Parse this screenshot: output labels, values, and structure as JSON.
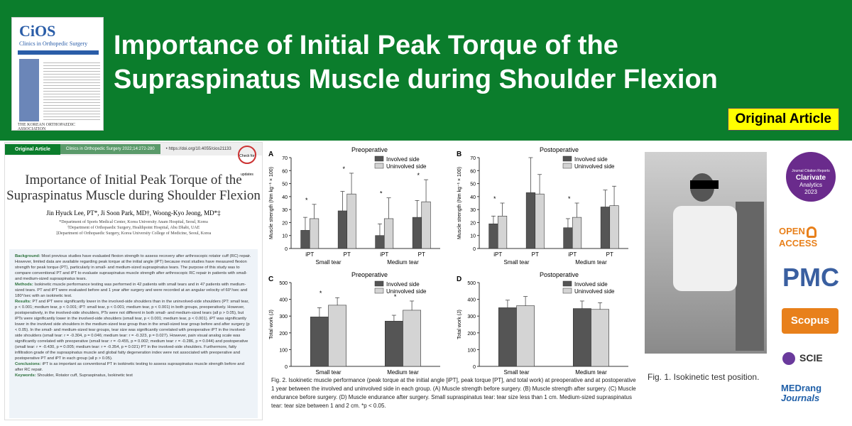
{
  "banner": {
    "title_line1": "Importance of Initial Peak Torque of the",
    "title_line2": "Supraspinatus Muscle during Shoulder Flexion",
    "badge": "Original Article"
  },
  "cover": {
    "logo": "CiOS",
    "subtitle": "Clinics in Orthopedic Surgery",
    "publisher": "THE KOREAN ORTHOPAEDIC ASSOCIATION"
  },
  "paper": {
    "label": "Original Article",
    "journal": "Clinics in Orthopedic Surgery 2022;14:272-280",
    "doi": "• https://doi.org/10.4055/cios21133",
    "check": "Check for updates",
    "title": "Importance of Initial Peak Torque of the Supraspinatus Muscle during Shoulder Flexion",
    "authors": "Jin Hyuck Lee, PT*, Ji Soon Park, MD†, Woong-Kyo Jeong, MD*‡",
    "aff1": "*Department of Sports Medical Center, Korea University Anam Hospital, Seoul, Korea",
    "aff2": "†Department of Orthopaedic Surgery, Healthpoint Hospital, Abu Dhabi, UAE",
    "aff3": "‡Department of Orthopaedic Surgery, Korea University College of Medicine, Seoul, Korea",
    "abstract": [
      {
        "head": "Background:",
        "text": "Most previous studies have evaluated flexion strength to assess recovery after arthroscopic rotator cuff (RC) repair. However, limited data are available regarding peak torque at the initial angle (iPT) because most studies have measured flexion strength for peak torque (PT), particularly in small- and medium-sized supraspinatus tears. The purpose of this study was to compare conventional PT and iPT to evaluate supraspinatus muscle strength after arthroscopic RC repair in patients with small- and medium-sized supraspinatus tears."
      },
      {
        "head": "Methods:",
        "text": "Isokinetic muscle performance testing was performed in 42 patients with small tears and in 47 patients with medium-sized tears. PT and iPT were evaluated before and 1 year after surgery and were recorded at an angular velocity of 60°/sec and 180°/sec with an isokinetic test."
      },
      {
        "head": "Results:",
        "text": "PT and iPT were significantly lower in the involved-side shoulders than in the uninvolved-side shoulders (PT: small tear, p < 0.001; medium tear, p < 0.001; iPT: small tear, p < 0.001; medium tear, p < 0.001) in both groups, preoperatively. However, postoperatively, in the involved-side shoulders, PTs were not different in both small- and medium-sized tears (all p > 0.05), but iPTs were significantly lower in the involved-side shoulders (small tear, p < 0.001; medium tear, p < 0.001). iPT was significantly lower in the involved side shoulders in the medium-sized tear group than in the small-sized tear group before and after surgery (p < 0.05). In the small- and medium-sized tear groups, tear size was significantly correlated with preoperative iPT in the involved-side shoulders (small tear: r = -0.304, p = 0.046; medium tear: r = -0.323, p = 0.027). However, pain visual analog scale was significantly correlated with preoperative (small tear: r = -0.455, p = 0.002; medium tear: r = -0.286, p = 0.044) and postoperative (small tear: r = -0.430, p = 0.005; medium tear: r = -0.354, p = 0.021) PT in the involved-side shoulders. Furthermore, fatty infiltration grade of the supraspinatus muscle and global fatty degeneration index were not associated with preoperative and postoperative PT and iPT in each group (all p > 0.05)."
      },
      {
        "head": "Conclusions:",
        "text": "iPT is as important as conventional PT in isokinetic testing to assess supraspinatus muscle strength before and after RC repair."
      },
      {
        "head": "Keywords:",
        "text": "Shoulder, Rotator cuff, Supraspinatus, Isokinetic test"
      }
    ]
  },
  "fig2_caption": "Fig. 2. Isokinetic muscle performance (peak torque at the initial angle [iPT], peak torque [PT], and total work) at preoperative and at postoperative 1 year between the involved and uninvolved side in each group. (A) Muscle strength before surgery. (B) Muscle strength after surgery. (C) Muscle endurance before surgery. (D) Muscle endurance after surgery. Small supraspinatus tear: tear size less than 1 cm. Medium-sized supraspinatus tear: tear size between 1 and 2 cm. *p < 0.05.",
  "fig1_caption": "Fig. 1. Isokinetic test position.",
  "logos": {
    "clarivate_top": "Journal Citation Reports",
    "clarivate": "Clarivate",
    "clarivate_sub": "Analytics",
    "clarivate_year": "2023",
    "open_access": "OPEN ACCESS",
    "pmc": "PMC",
    "scopus": "Scopus",
    "scie": "SCIE",
    "medrang": "MEDrang",
    "medrang_sub": "Journals"
  },
  "chart_data": [
    {
      "panel": "A",
      "type": "bar",
      "title": "Preoperative",
      "ylabel": "Muscle strength (Nm kg⁻¹ × 100)",
      "ylim": [
        0,
        70
      ],
      "yticks": [
        0,
        10,
        20,
        30,
        40,
        50,
        60,
        70
      ],
      "categories": [
        "iPT",
        "PT",
        "iPT",
        "PT"
      ],
      "groups": [
        "Small tear",
        "Medium tear"
      ],
      "series": [
        {
          "name": "Involved side",
          "values": [
            14,
            29,
            10,
            24
          ],
          "errors": [
            10,
            15,
            9,
            13
          ]
        },
        {
          "name": "Uninvolved side",
          "values": [
            23,
            42,
            23,
            36
          ],
          "errors": [
            11,
            16,
            16,
            17
          ]
        }
      ],
      "stars": [
        "*",
        "*",
        "*",
        "*"
      ]
    },
    {
      "panel": "B",
      "type": "bar",
      "title": "Postoperative",
      "ylabel": "Muscle strength (Nm kg⁻¹ × 100)",
      "ylim": [
        0,
        70
      ],
      "yticks": [
        0,
        10,
        20,
        30,
        40,
        50,
        60,
        70
      ],
      "categories": [
        "iPT",
        "PT",
        "iPT",
        "PT"
      ],
      "groups": [
        "Small tear",
        "Medium tear"
      ],
      "series": [
        {
          "name": "Involved side",
          "values": [
            19,
            43,
            16,
            32
          ],
          "errors": [
            6,
            31,
            7,
            13
          ]
        },
        {
          "name": "Uninvolved side",
          "values": [
            25,
            42,
            24,
            33
          ],
          "errors": [
            10,
            15,
            11,
            15
          ]
        }
      ],
      "stars": [
        "*",
        "",
        "*",
        ""
      ]
    },
    {
      "panel": "C",
      "type": "bar",
      "title": "Preoperative",
      "ylabel": "Total work (J)",
      "ylim": [
        0,
        500
      ],
      "yticks": [
        0,
        100,
        200,
        300,
        400,
        500
      ],
      "categories": [
        "Small tear",
        "Medium tear"
      ],
      "series": [
        {
          "name": "Involved side",
          "values": [
            295,
            270
          ],
          "errors": [
            55,
            35
          ]
        },
        {
          "name": "Uninvolved side",
          "values": [
            365,
            335
          ],
          "errors": [
            45,
            55
          ]
        }
      ],
      "stars": [
        "*",
        "*"
      ]
    },
    {
      "panel": "D",
      "type": "bar",
      "title": "Postoperative",
      "ylabel": "Total work (J)",
      "ylim": [
        0,
        500
      ],
      "yticks": [
        0,
        100,
        200,
        300,
        400,
        500
      ],
      "categories": [
        "Small tear",
        "Medium tear"
      ],
      "series": [
        {
          "name": "Involved side",
          "values": [
            350,
            345
          ],
          "errors": [
            45,
            45
          ]
        },
        {
          "name": "Uninvolved side",
          "values": [
            362,
            340
          ],
          "errors": [
            55,
            40
          ]
        }
      ],
      "stars": [
        "",
        ""
      ]
    }
  ]
}
